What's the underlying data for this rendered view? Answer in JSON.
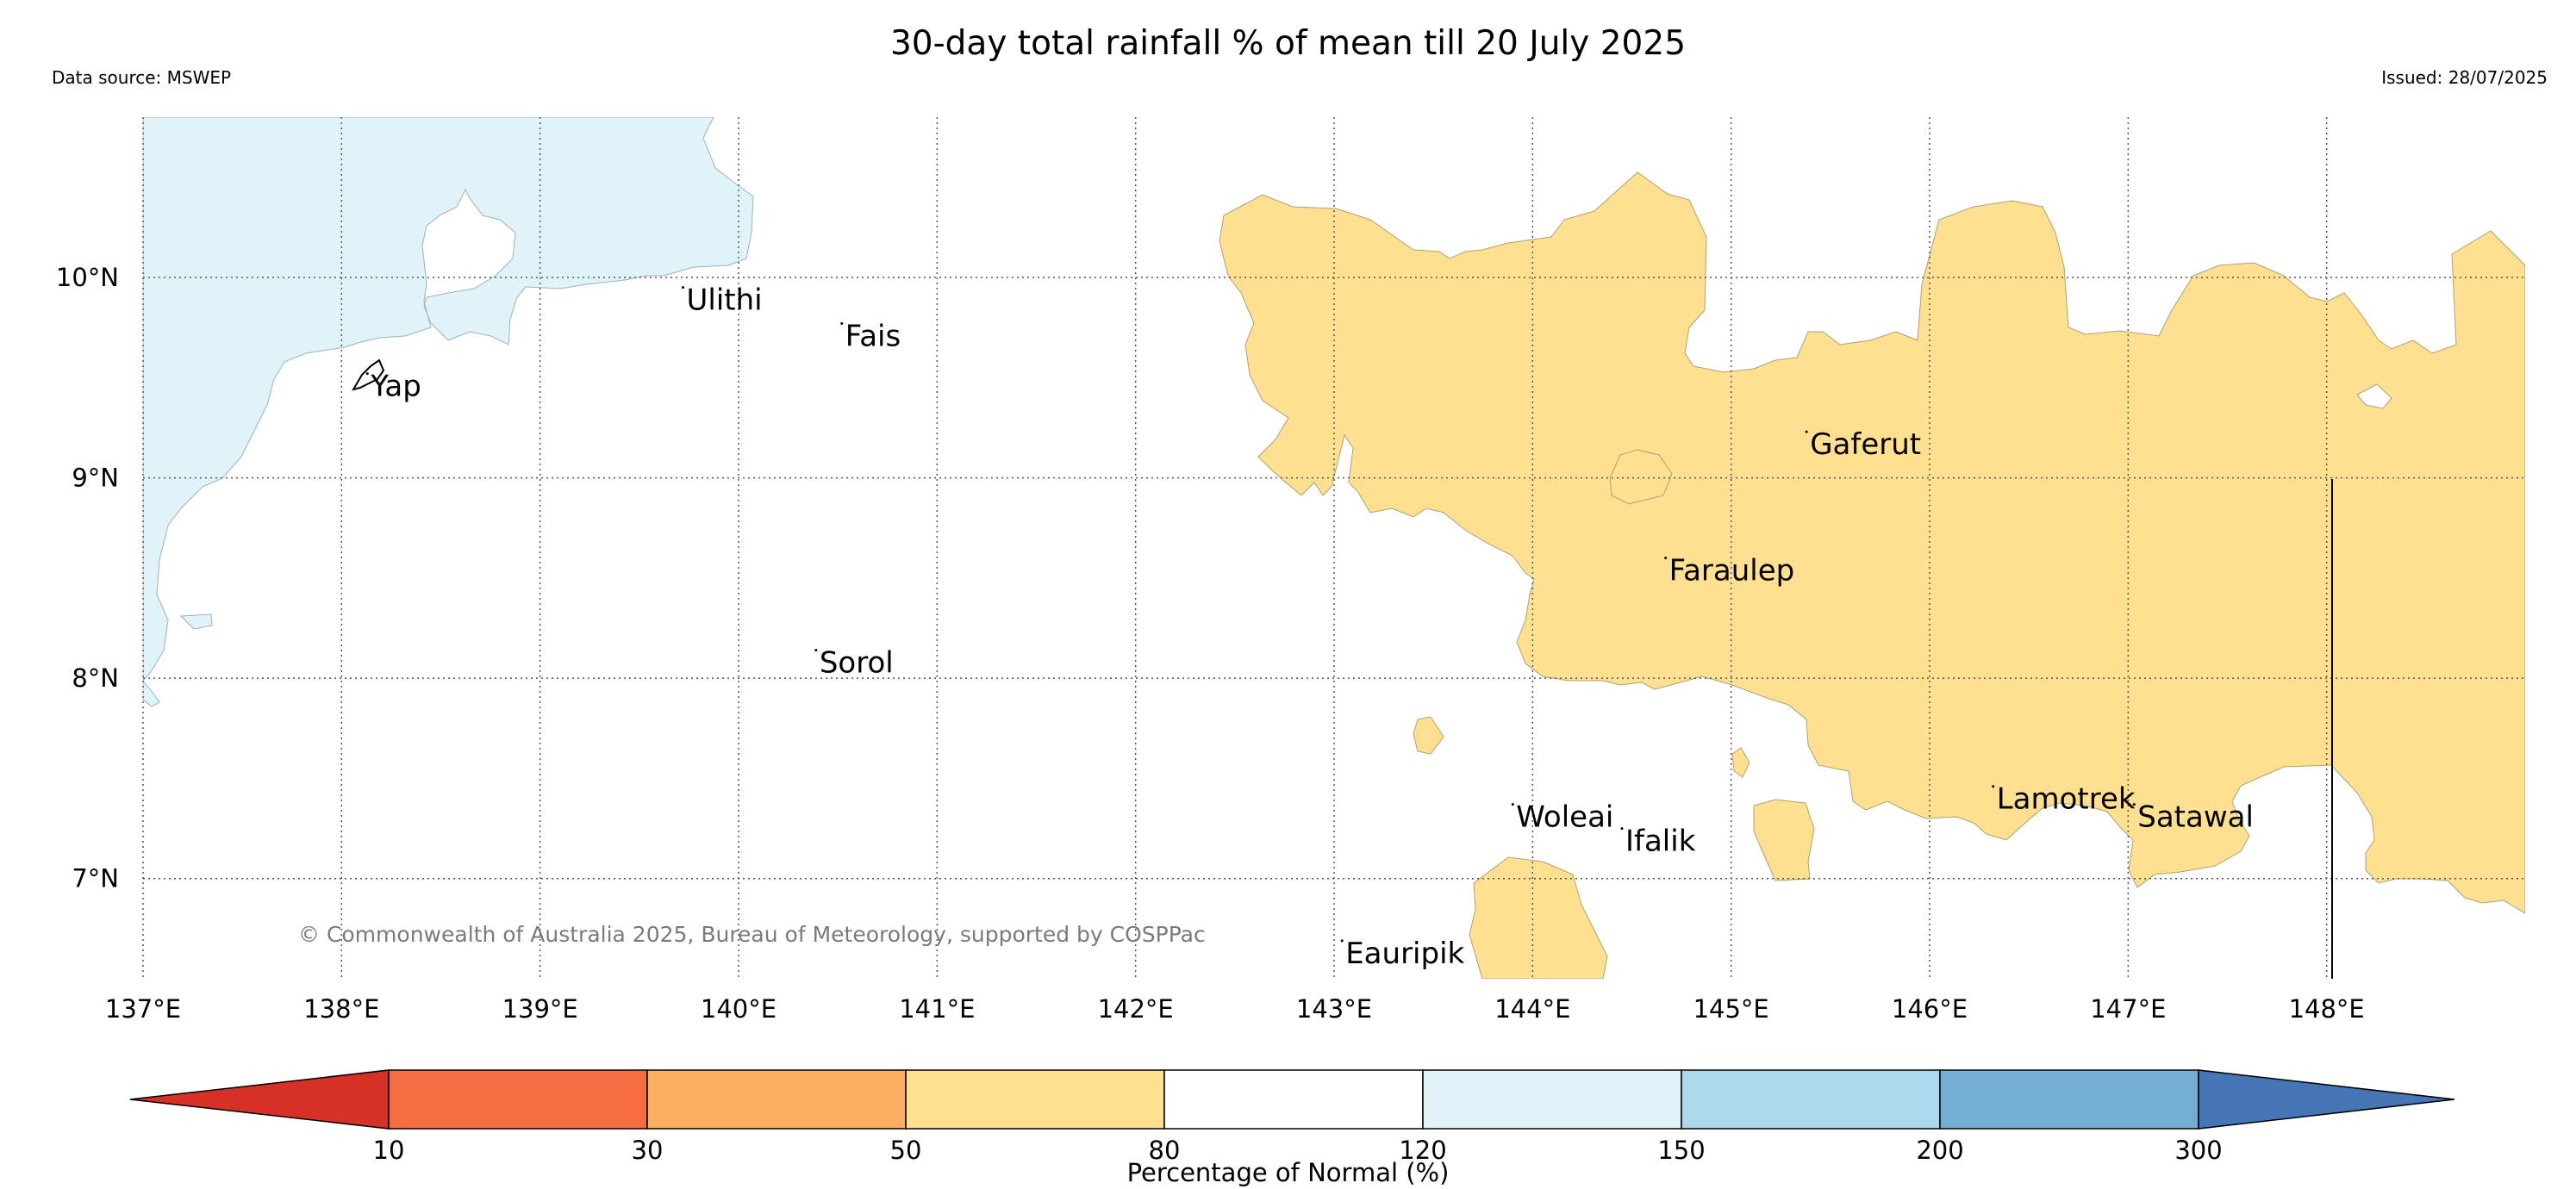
{
  "title": "30-day total rainfall % of mean till 20 July 2025",
  "data_source": "Data source: MSWEP",
  "issued": "Issued: 28/07/2025",
  "copyright": "© Commonwealth of Australia 2025, Bureau of Meteorology, supported by COSPPac",
  "extent": {
    "lon": [
      137,
      149
    ],
    "lat": [
      6.5,
      10.8
    ]
  },
  "graticule": {
    "lon": [
      137,
      138,
      139,
      140,
      141,
      142,
      143,
      144,
      145,
      146,
      147,
      148
    ],
    "lat": [
      7,
      8,
      9,
      10
    ],
    "lon_labels": [
      "137°E",
      "138°E",
      "139°E",
      "140°E",
      "141°E",
      "142°E",
      "143°E",
      "144°E",
      "145°E",
      "146°E",
      "147°E",
      "148°E"
    ],
    "lat_labels": [
      "7°N",
      "8°N",
      "9°N",
      "10°N"
    ]
  },
  "places": [
    {
      "name": "Ulithi",
      "lon": 139.72,
      "lat": 9.95
    },
    {
      "name": "Fais",
      "lon": 140.52,
      "lat": 9.77
    },
    {
      "name": "Yap",
      "lon": 138.13,
      "lat": 9.52
    },
    {
      "name": "Gaferut",
      "lon": 145.38,
      "lat": 9.23
    },
    {
      "name": "Faraulep",
      "lon": 144.67,
      "lat": 8.6
    },
    {
      "name": "Sorol",
      "lon": 140.39,
      "lat": 8.14
    },
    {
      "name": "Woleai",
      "lon": 143.9,
      "lat": 7.37
    },
    {
      "name": "Ifalik",
      "lon": 144.45,
      "lat": 7.25
    },
    {
      "name": "Lamotrek",
      "lon": 146.32,
      "lat": 7.46
    },
    {
      "name": "Satawal",
      "lon": 147.03,
      "lat": 7.37
    },
    {
      "name": "Eauripik",
      "lon": 143.04,
      "lat": 6.69
    }
  ],
  "colorbar": {
    "boundaries": [
      "10",
      "30",
      "50",
      "80",
      "120",
      "150",
      "200",
      "300"
    ],
    "colors": [
      "#d73027",
      "#f46d43",
      "#fdae61",
      "#fee090",
      "#ffffff",
      "#e0f3f8",
      "#abd9e9",
      "#74add1",
      "#4575b4"
    ],
    "label": "Percentage of Normal (%)"
  },
  "region_colors": {
    "below": "#fee090",
    "above": "#e0f3f8"
  }
}
